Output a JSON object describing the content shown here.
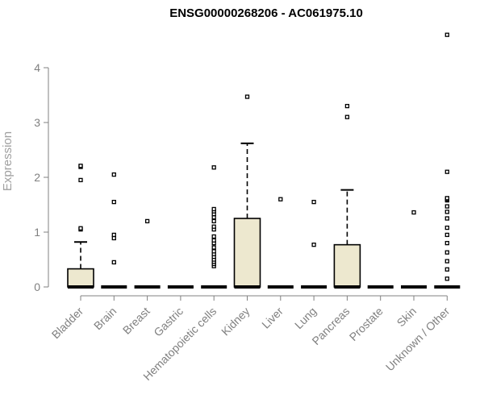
{
  "chart_data": {
    "type": "boxplot",
    "title": "ENSG00000268206 - AC061975.10",
    "ylabel": "Expression",
    "xlabel": "",
    "ylim": [
      0,
      4.7
    ],
    "yticks": [
      0,
      1,
      2,
      3,
      4
    ],
    "grid": false,
    "colors": {
      "box_fill": "#ede8cf",
      "stroke": "#000000",
      "axis": "#808080"
    },
    "categories": [
      "Bladder",
      "Brain",
      "Breast",
      "Gastric",
      "Hematopoietic cells",
      "Kidney",
      "Liver",
      "Lung",
      "Pancreas",
      "Prostate",
      "Skin",
      "Unknown / Other"
    ],
    "boxes": [
      {
        "category": "Bladder",
        "q1": 0,
        "median": 0,
        "q3": 0.33,
        "whisker_low": 0,
        "whisker_high": 0.82,
        "outliers": [
          1.05,
          1.07,
          1.95,
          2.19,
          2.21
        ]
      },
      {
        "category": "Brain",
        "q1": 0,
        "median": 0,
        "q3": 0,
        "whisker_low": 0,
        "whisker_high": 0,
        "outliers": [
          0.45,
          0.89,
          0.95,
          1.55,
          2.05
        ]
      },
      {
        "category": "Breast",
        "q1": 0,
        "median": 0,
        "q3": 0,
        "whisker_low": 0,
        "whisker_high": 0,
        "outliers": [
          1.2
        ]
      },
      {
        "category": "Gastric",
        "q1": 0,
        "median": 0,
        "q3": 0,
        "whisker_low": 0,
        "whisker_high": 0,
        "outliers": []
      },
      {
        "category": "Hematopoietic cells",
        "q1": 0,
        "median": 0,
        "q3": 0,
        "whisker_low": 0,
        "whisker_high": 0,
        "outliers": [
          0.38,
          0.42,
          0.46,
          0.5,
          0.55,
          0.6,
          0.65,
          0.72,
          0.8,
          0.85,
          0.92,
          1.05,
          1.1,
          1.2,
          1.27,
          1.33,
          1.38,
          1.42,
          2.18
        ]
      },
      {
        "category": "Kidney",
        "q1": 0,
        "median": 0,
        "q3": 1.25,
        "whisker_low": 0,
        "whisker_high": 2.62,
        "outliers": [
          3.47
        ]
      },
      {
        "category": "Liver",
        "q1": 0,
        "median": 0,
        "q3": 0,
        "whisker_low": 0,
        "whisker_high": 0,
        "outliers": [
          1.6
        ]
      },
      {
        "category": "Lung",
        "q1": 0,
        "median": 0,
        "q3": 0,
        "whisker_low": 0,
        "whisker_high": 0,
        "outliers": [
          0.77,
          1.55
        ]
      },
      {
        "category": "Pancreas",
        "q1": 0,
        "median": 0,
        "q3": 0.77,
        "whisker_low": 0,
        "whisker_high": 1.77,
        "outliers": [
          3.1,
          3.3
        ]
      },
      {
        "category": "Prostate",
        "q1": 0,
        "median": 0,
        "q3": 0,
        "whisker_low": 0,
        "whisker_high": 0,
        "outliers": []
      },
      {
        "category": "Skin",
        "q1": 0,
        "median": 0,
        "q3": 0,
        "whisker_low": 0,
        "whisker_high": 0,
        "outliers": [
          1.36
        ]
      },
      {
        "category": "Unknown / Other",
        "q1": 0,
        "median": 0,
        "q3": 0,
        "whisker_low": 0,
        "whisker_high": 0,
        "outliers": [
          0.15,
          0.32,
          0.47,
          0.63,
          0.8,
          0.95,
          1.08,
          1.25,
          1.37,
          1.47,
          1.58,
          1.6,
          1.62,
          2.1,
          4.6
        ]
      }
    ]
  }
}
